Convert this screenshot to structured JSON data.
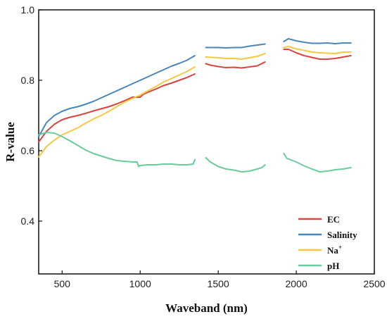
{
  "chart_data": {
    "type": "line",
    "xlabel": "Waveband (nm)",
    "ylabel": "R-value",
    "xlim": [
      350,
      2500
    ],
    "ylim": [
      0.25,
      1.0
    ],
    "x_ticks": [
      500,
      1000,
      1500,
      2000,
      2500
    ],
    "y_ticks": [
      0.4,
      0.6,
      0.8,
      1.0
    ],
    "x_tick_labels": [
      "500",
      "1000",
      "1500",
      "2000",
      "2500"
    ],
    "y_tick_labels": [
      "0.4",
      "0.6",
      "0.8",
      "1.0"
    ],
    "grid": false,
    "legend_position": "bottom-right",
    "series": [
      {
        "name": "EC",
        "legend_label": "EC",
        "legend_sup": "",
        "color": "#d9443f",
        "segments": [
          [
            [
              350,
              0.625
            ],
            [
              400,
              0.655
            ],
            [
              450,
              0.675
            ],
            [
              500,
              0.688
            ],
            [
              550,
              0.695
            ],
            [
              600,
              0.7
            ],
            [
              650,
              0.706
            ],
            [
              700,
              0.713
            ],
            [
              750,
              0.719
            ],
            [
              800,
              0.725
            ],
            [
              850,
              0.733
            ],
            [
              900,
              0.742
            ],
            [
              950,
              0.752
            ],
            [
              980,
              0.752
            ],
            [
              1000,
              0.752
            ],
            [
              1020,
              0.76
            ],
            [
              1050,
              0.766
            ],
            [
              1100,
              0.775
            ],
            [
              1150,
              0.785
            ],
            [
              1200,
              0.792
            ],
            [
              1250,
              0.8
            ],
            [
              1300,
              0.808
            ],
            [
              1350,
              0.818
            ]
          ],
          [
            [
              1420,
              0.847
            ],
            [
              1450,
              0.843
            ],
            [
              1500,
              0.839
            ],
            [
              1550,
              0.836
            ],
            [
              1600,
              0.837
            ],
            [
              1650,
              0.835
            ],
            [
              1700,
              0.838
            ],
            [
              1750,
              0.841
            ],
            [
              1800,
              0.852
            ]
          ],
          [
            [
              1920,
              0.888
            ],
            [
              1950,
              0.888
            ],
            [
              2000,
              0.878
            ],
            [
              2050,
              0.87
            ],
            [
              2100,
              0.865
            ],
            [
              2150,
              0.86
            ],
            [
              2200,
              0.86
            ],
            [
              2250,
              0.862
            ],
            [
              2300,
              0.866
            ],
            [
              2350,
              0.87
            ]
          ]
        ]
      },
      {
        "name": "Salinity",
        "legend_label": "Salinity",
        "legend_sup": "",
        "color": "#4a86b8",
        "segments": [
          [
            [
              350,
              0.64
            ],
            [
              400,
              0.68
            ],
            [
              450,
              0.7
            ],
            [
              500,
              0.712
            ],
            [
              550,
              0.72
            ],
            [
              600,
              0.725
            ],
            [
              650,
              0.732
            ],
            [
              700,
              0.74
            ],
            [
              750,
              0.75
            ],
            [
              800,
              0.76
            ],
            [
              850,
              0.77
            ],
            [
              900,
              0.78
            ],
            [
              950,
              0.79
            ],
            [
              1000,
              0.8
            ],
            [
              1050,
              0.81
            ],
            [
              1100,
              0.82
            ],
            [
              1150,
              0.83
            ],
            [
              1200,
              0.84
            ],
            [
              1250,
              0.848
            ],
            [
              1300,
              0.857
            ],
            [
              1350,
              0.87
            ]
          ],
          [
            [
              1420,
              0.893
            ],
            [
              1500,
              0.893
            ],
            [
              1550,
              0.892
            ],
            [
              1600,
              0.893
            ],
            [
              1650,
              0.893
            ],
            [
              1700,
              0.897
            ],
            [
              1750,
              0.9
            ],
            [
              1800,
              0.903
            ]
          ],
          [
            [
              1920,
              0.91
            ],
            [
              1950,
              0.918
            ],
            [
              2000,
              0.912
            ],
            [
              2050,
              0.908
            ],
            [
              2100,
              0.905
            ],
            [
              2150,
              0.905
            ],
            [
              2200,
              0.906
            ],
            [
              2250,
              0.904
            ],
            [
              2300,
              0.906
            ],
            [
              2350,
              0.906
            ]
          ]
        ]
      },
      {
        "name": "Na+",
        "legend_label": "Na",
        "legend_sup": "+",
        "color": "#f5c842",
        "segments": [
          [
            [
              350,
              0.582
            ],
            [
              400,
              0.612
            ],
            [
              450,
              0.63
            ],
            [
              500,
              0.645
            ],
            [
              550,
              0.655
            ],
            [
              600,
              0.665
            ],
            [
              650,
              0.678
            ],
            [
              700,
              0.69
            ],
            [
              750,
              0.7
            ],
            [
              800,
              0.712
            ],
            [
              850,
              0.725
            ],
            [
              900,
              0.738
            ],
            [
              950,
              0.748
            ],
            [
              1000,
              0.758
            ],
            [
              1050,
              0.77
            ],
            [
              1100,
              0.782
            ],
            [
              1150,
              0.795
            ],
            [
              1200,
              0.805
            ],
            [
              1250,
              0.815
            ],
            [
              1300,
              0.825
            ],
            [
              1350,
              0.838
            ]
          ],
          [
            [
              1420,
              0.866
            ],
            [
              1500,
              0.864
            ],
            [
              1550,
              0.862
            ],
            [
              1600,
              0.862
            ],
            [
              1650,
              0.86
            ],
            [
              1700,
              0.864
            ],
            [
              1750,
              0.868
            ],
            [
              1800,
              0.876
            ]
          ],
          [
            [
              1920,
              0.893
            ],
            [
              1950,
              0.896
            ],
            [
              2000,
              0.889
            ],
            [
              2050,
              0.885
            ],
            [
              2100,
              0.88
            ],
            [
              2150,
              0.878
            ],
            [
              2200,
              0.877
            ],
            [
              2250,
              0.876
            ],
            [
              2300,
              0.88
            ],
            [
              2350,
              0.88
            ]
          ]
        ]
      },
      {
        "name": "pH",
        "legend_label": "pH",
        "legend_sup": "",
        "color": "#6ccb9a",
        "segments": [
          [
            [
              350,
              0.645
            ],
            [
              400,
              0.652
            ],
            [
              450,
              0.65
            ],
            [
              500,
              0.64
            ],
            [
              550,
              0.628
            ],
            [
              600,
              0.615
            ],
            [
              650,
              0.602
            ],
            [
              700,
              0.592
            ],
            [
              750,
              0.585
            ],
            [
              800,
              0.578
            ],
            [
              850,
              0.572
            ],
            [
              900,
              0.57
            ],
            [
              950,
              0.568
            ],
            [
              980,
              0.568
            ],
            [
              990,
              0.555
            ],
            [
              1000,
              0.558
            ],
            [
              1050,
              0.56
            ],
            [
              1100,
              0.56
            ],
            [
              1150,
              0.562
            ],
            [
              1200,
              0.562
            ],
            [
              1250,
              0.56
            ],
            [
              1300,
              0.56
            ],
            [
              1340,
              0.562
            ],
            [
              1350,
              0.575
            ]
          ],
          [
            [
              1420,
              0.58
            ],
            [
              1450,
              0.568
            ],
            [
              1500,
              0.555
            ],
            [
              1550,
              0.548
            ],
            [
              1600,
              0.545
            ],
            [
              1650,
              0.54
            ],
            [
              1700,
              0.542
            ],
            [
              1750,
              0.548
            ],
            [
              1780,
              0.552
            ],
            [
              1800,
              0.56
            ]
          ],
          [
            [
              1920,
              0.592
            ],
            [
              1940,
              0.578
            ],
            [
              2000,
              0.568
            ],
            [
              2050,
              0.557
            ],
            [
              2100,
              0.548
            ],
            [
              2150,
              0.54
            ],
            [
              2200,
              0.542
            ],
            [
              2250,
              0.546
            ],
            [
              2300,
              0.548
            ],
            [
              2350,
              0.552
            ]
          ]
        ]
      }
    ]
  }
}
